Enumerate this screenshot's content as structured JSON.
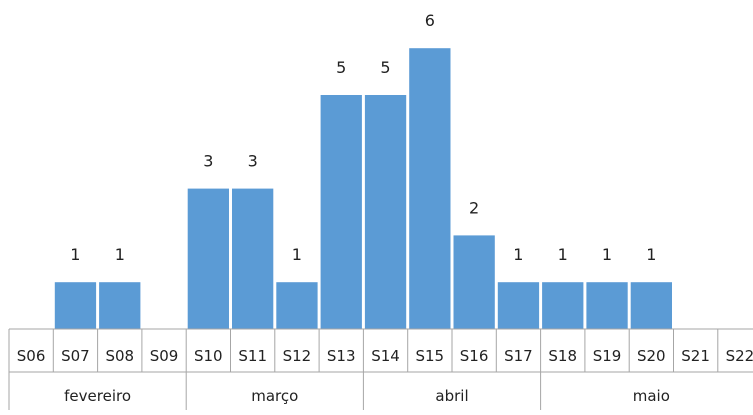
{
  "chart_data": {
    "type": "bar",
    "title": "",
    "xlabel": "",
    "ylabel": "",
    "ylim": [
      0,
      6
    ],
    "grid": false,
    "legend": "none",
    "bar_color": "#5B9BD5",
    "axis_color": "#A6A6A6",
    "categories": [
      "S06",
      "S07",
      "S08",
      "S09",
      "S10",
      "S11",
      "S12",
      "S13",
      "S14",
      "S15",
      "S16",
      "S17",
      "S18",
      "S19",
      "S20",
      "S21",
      "S22"
    ],
    "values": [
      null,
      1,
      1,
      null,
      3,
      3,
      1,
      5,
      5,
      6,
      2,
      1,
      1,
      1,
      1,
      null,
      null
    ],
    "groups": [
      {
        "label": "fevereiro",
        "start": 0,
        "end": 3
      },
      {
        "label": "março",
        "start": 4,
        "end": 7
      },
      {
        "label": "abril",
        "start": 8,
        "end": 11
      },
      {
        "label": "maio",
        "start": 12,
        "end": 16
      }
    ]
  }
}
